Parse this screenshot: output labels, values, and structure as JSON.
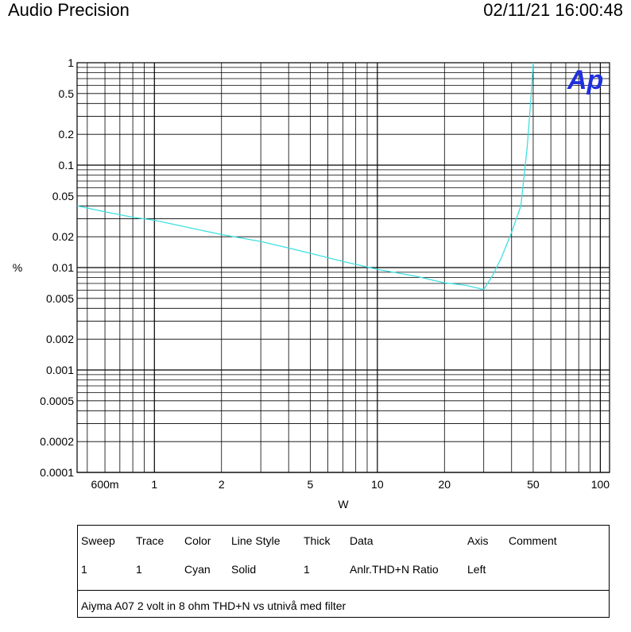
{
  "header": {
    "app_title": "Audio Precision",
    "timestamp": "02/11/21 16:00:48"
  },
  "chart_data": {
    "type": "line",
    "title": "",
    "xlabel": "W",
    "ylabel": "%",
    "x_scale": "log",
    "y_scale": "log",
    "xlim": [
      0.45,
      110
    ],
    "ylim": [
      0.0001,
      1
    ],
    "grid": true,
    "x_ticks": [
      {
        "v": 0.6,
        "label": "600m"
      },
      {
        "v": 1,
        "label": "1"
      },
      {
        "v": 2,
        "label": "2"
      },
      {
        "v": 5,
        "label": "5"
      },
      {
        "v": 10,
        "label": "10"
      },
      {
        "v": 20,
        "label": "20"
      },
      {
        "v": 50,
        "label": "50"
      },
      {
        "v": 100,
        "label": "100"
      }
    ],
    "y_ticks": [
      {
        "v": 1,
        "label": "1"
      },
      {
        "v": 0.5,
        "label": "0.5"
      },
      {
        "v": 0.2,
        "label": "0.2"
      },
      {
        "v": 0.1,
        "label": "0.1"
      },
      {
        "v": 0.05,
        "label": "0.05"
      },
      {
        "v": 0.02,
        "label": "0.02"
      },
      {
        "v": 0.01,
        "label": "0.01"
      },
      {
        "v": 0.005,
        "label": "0.005"
      },
      {
        "v": 0.002,
        "label": "0.002"
      },
      {
        "v": 0.001,
        "label": "0.001"
      },
      {
        "v": 0.0005,
        "label": "0.0005"
      },
      {
        "v": 0.0002,
        "label": "0.0002"
      },
      {
        "v": 0.0001,
        "label": "0.0001"
      }
    ],
    "series": [
      {
        "color": "#3fe0e0",
        "x": [
          0.45,
          0.6,
          0.8,
          1.0,
          1.5,
          2.0,
          3.0,
          4.0,
          5.0,
          7.0,
          10.0,
          15.0,
          20.0,
          25.0,
          30.0,
          33.0,
          36.0,
          40.0,
          44.0,
          47.0,
          49.0,
          50.0
        ],
        "y": [
          0.04,
          0.035,
          0.031,
          0.029,
          0.024,
          0.021,
          0.018,
          0.0155,
          0.0138,
          0.0115,
          0.0096,
          0.0082,
          0.0071,
          0.0067,
          0.0061,
          0.0085,
          0.0125,
          0.022,
          0.04,
          0.15,
          0.5,
          1.0
        ]
      }
    ]
  },
  "legend_table": {
    "headers": [
      "Sweep",
      "Trace",
      "Color",
      "Line Style",
      "Thick",
      "Data",
      "Axis",
      "Comment"
    ],
    "row": [
      "1",
      "1",
      "Cyan",
      "Solid",
      "1",
      "Anlr.THD+N Ratio",
      "Left",
      ""
    ],
    "note": "Aiyma A07 2 volt in 8 ohm THD+N vs utnivå med filter"
  },
  "logo": {
    "text": "Ap",
    "color": "#1f2fe0"
  }
}
